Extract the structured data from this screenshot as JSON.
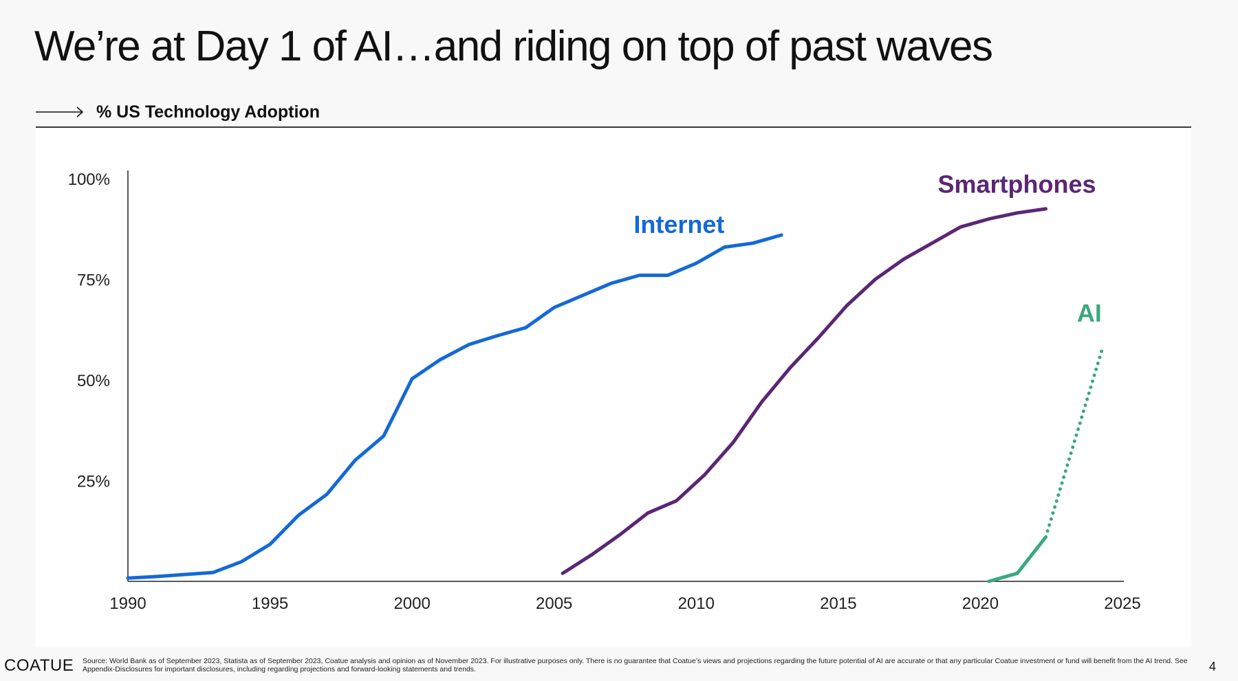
{
  "slide": {
    "title": "We’re at Day 1 of AI…and riding on top of past waves",
    "subtitle": "% US Technology Adoption",
    "page_number": "4"
  },
  "footer": {
    "logo": "COATUE",
    "source": "Source: World Bank as of September 2023, Statista as of September 2023, Coatue analysis and opinion as of November 2023. For illustrative purposes only. There is no guarantee that Coatue’s views and projections regarding the future potential of AI are accurate or that any particular Coatue investment or fund will benefit from the AI trend. See Appendix-Disclosures for important disclosures, including regarding projections and forward-looking statements and trends."
  },
  "colors": {
    "internet": "#1469d8",
    "smartphones": "#5b2676",
    "ai": "#3aa87e",
    "axis": "#222222"
  },
  "chart_data": {
    "type": "line",
    "title": "% US Technology Adoption",
    "xlim": [
      1990,
      2025
    ],
    "ylim": [
      0,
      100
    ],
    "x_ticks": [
      1990,
      1995,
      2000,
      2005,
      2010,
      2015,
      2020,
      2025
    ],
    "x_tick_labels": [
      "1990",
      "1995",
      "2000",
      "2005",
      "2010",
      "2015",
      "2020",
      "2025"
    ],
    "y_ticks": [
      25,
      50,
      75,
      100
    ],
    "y_tick_labels": [
      "25%",
      "50%",
      "75%",
      "100%"
    ],
    "grid": false,
    "series": [
      {
        "name": "Internet",
        "color_key": "internet",
        "x": [
          1990,
          1991,
          1992,
          1993,
          1994,
          1995,
          1996,
          1997,
          1998,
          1999,
          2000,
          2001,
          2002,
          2003,
          2004,
          2005,
          2006,
          2007,
          2008,
          2009,
          2010,
          2011,
          2012,
          2013
        ],
        "y": [
          0.8,
          1.2,
          1.7,
          2.2,
          4.9,
          9.2,
          16.4,
          21.6,
          30.1,
          36.1,
          50.3,
          55.1,
          58.8,
          61.0,
          63.0,
          68.0,
          71.0,
          74.0,
          76.0,
          76.0,
          79.0,
          83.0,
          84.0,
          86.0
        ]
      },
      {
        "name": "Smartphones",
        "color_key": "smartphones",
        "x": [
          2005.3,
          2006.3,
          2007.3,
          2008.3,
          2009.3,
          2010.3,
          2011.3,
          2012.3,
          2013.3,
          2014.3,
          2015.3,
          2016.3,
          2017.3,
          2018.3,
          2019.3,
          2020.3,
          2021.3,
          2022.3
        ],
        "y": [
          2.0,
          6.5,
          11.5,
          17.0,
          20.0,
          26.5,
          34.5,
          44.5,
          53.0,
          60.5,
          68.5,
          75.0,
          80.0,
          84.0,
          88.0,
          90.0,
          91.5,
          92.5
        ]
      },
      {
        "name": "AI",
        "color_key": "ai",
        "x": [
          2020.3,
          2021.3,
          2022.3
        ],
        "y": [
          0,
          2,
          11
        ],
        "projection": {
          "x": [
            2022.3,
            2024.3
          ],
          "y": [
            11,
            58
          ]
        }
      }
    ]
  }
}
